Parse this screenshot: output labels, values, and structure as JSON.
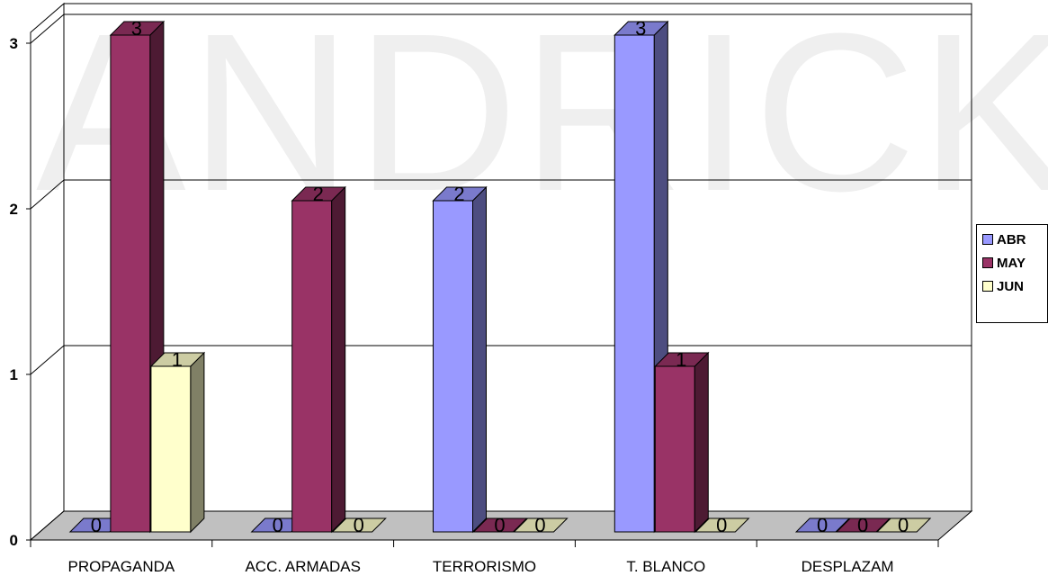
{
  "watermark": "ANDRICK",
  "colors": {
    "ABR": "#9999FF",
    "MAY": "#993366",
    "JUN": "#FFFFCC",
    "floor": "#C0C0C0"
  },
  "chart_data": {
    "type": "bar",
    "categories": [
      "PROPAGANDA",
      "ACC. ARMADAS",
      "TERRORISMO",
      "T. BLANCO",
      "DESPLAZAM"
    ],
    "series": [
      {
        "name": "ABR",
        "values": [
          0,
          0,
          2,
          3,
          0
        ]
      },
      {
        "name": "MAY",
        "values": [
          3,
          2,
          0,
          1,
          0
        ]
      },
      {
        "name": "JUN",
        "values": [
          1,
          0,
          0,
          0,
          0
        ]
      }
    ],
    "yticks": [
      0,
      1,
      2,
      3
    ],
    "ylim": [
      0,
      3
    ],
    "grid": true,
    "legend": "right",
    "three_d": true
  }
}
